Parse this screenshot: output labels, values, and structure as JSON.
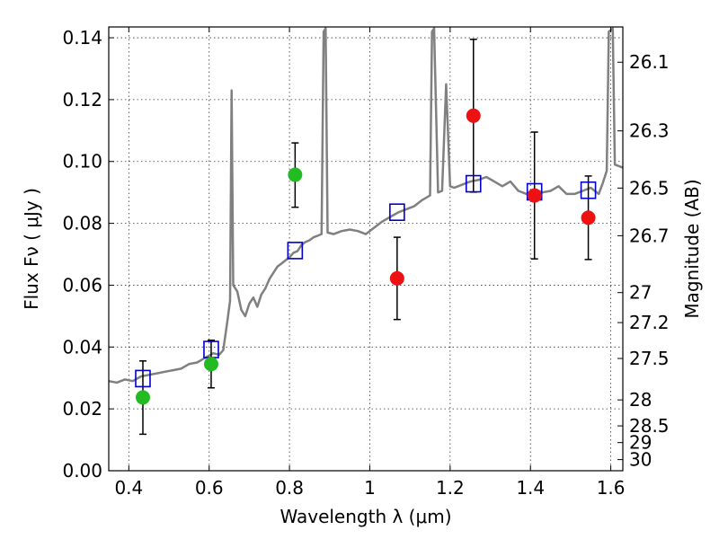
{
  "chart_data": {
    "type": "scatter",
    "title": "",
    "xlabel": "Wavelength  λ (μm)",
    "ylabel": "Flux  Fν  ( μJy )",
    "ylabel2": "Magnitude (AB)",
    "xlim": [
      0.35,
      1.63
    ],
    "ylim": [
      0.0,
      0.1435
    ],
    "grid": true,
    "x_ticks": [
      0.4,
      0.6,
      0.8,
      1.0,
      1.2,
      1.4,
      1.6
    ],
    "x_tick_labels": [
      "0.4",
      "0.6",
      "0.8",
      "1",
      "1.2",
      "1.4",
      "1.6"
    ],
    "y_ticks": [
      0.0,
      0.02,
      0.04,
      0.06,
      0.08,
      0.1,
      0.12,
      0.14
    ],
    "y_tick_labels": [
      "0.00",
      "0.02",
      "0.04",
      "0.06",
      "0.08",
      "0.10",
      "0.12",
      "0.14"
    ],
    "magnitude_ticks": [
      {
        "label": "26.1",
        "flux": 0.1321
      },
      {
        "label": "26.3",
        "flux": 0.1099
      },
      {
        "label": "26.5",
        "flux": 0.0914
      },
      {
        "label": "26.7",
        "flux": 0.076
      },
      {
        "label": "27",
        "flux": 0.0576
      },
      {
        "label": "27.2",
        "flux": 0.0479
      },
      {
        "label": "27.5",
        "flux": 0.0363
      },
      {
        "label": "28",
        "flux": 0.0229
      },
      {
        "label": "28.5",
        "flux": 0.0145
      },
      {
        "label": "29",
        "flux": 0.0091
      },
      {
        "label": "30",
        "flux": 0.0036
      }
    ],
    "colors": {
      "spectrum": "#808080",
      "model_box": "#0000cc",
      "green_point": "#22bb22",
      "red_point": "#ee1111",
      "errorbar": "#000000"
    },
    "series": [
      {
        "kind": "spectrum",
        "points": [
          [
            0.35,
            0.029
          ],
          [
            0.37,
            0.0285
          ],
          [
            0.39,
            0.0295
          ],
          [
            0.41,
            0.029
          ],
          [
            0.43,
            0.0305
          ],
          [
            0.45,
            0.031
          ],
          [
            0.47,
            0.0315
          ],
          [
            0.49,
            0.032
          ],
          [
            0.51,
            0.0325
          ],
          [
            0.53,
            0.033
          ],
          [
            0.55,
            0.0345
          ],
          [
            0.57,
            0.035
          ],
          [
            0.59,
            0.0365
          ],
          [
            0.61,
            0.038
          ],
          [
            0.625,
            0.0375
          ],
          [
            0.635,
            0.039
          ],
          [
            0.645,
            0.048
          ],
          [
            0.652,
            0.055
          ],
          [
            0.656,
            0.123
          ],
          [
            0.66,
            0.06
          ],
          [
            0.67,
            0.058
          ],
          [
            0.68,
            0.052
          ],
          [
            0.69,
            0.05
          ],
          [
            0.7,
            0.054
          ],
          [
            0.71,
            0.056
          ],
          [
            0.72,
            0.053
          ],
          [
            0.73,
            0.057
          ],
          [
            0.74,
            0.059
          ],
          [
            0.75,
            0.062
          ],
          [
            0.76,
            0.064
          ],
          [
            0.77,
            0.066
          ],
          [
            0.78,
            0.067
          ],
          [
            0.79,
            0.068
          ],
          [
            0.8,
            0.069
          ],
          [
            0.81,
            0.0705
          ],
          [
            0.82,
            0.071
          ],
          [
            0.83,
            0.073
          ],
          [
            0.84,
            0.074
          ],
          [
            0.85,
            0.0745
          ],
          [
            0.86,
            0.0755
          ],
          [
            0.87,
            0.076
          ],
          [
            0.88,
            0.0765
          ],
          [
            0.885,
            0.142
          ],
          [
            0.89,
            0.143
          ],
          [
            0.895,
            0.077
          ],
          [
            0.91,
            0.0765
          ],
          [
            0.93,
            0.0775
          ],
          [
            0.95,
            0.078
          ],
          [
            0.97,
            0.0775
          ],
          [
            0.99,
            0.0765
          ],
          [
            1.01,
            0.0785
          ],
          [
            1.03,
            0.0805
          ],
          [
            1.05,
            0.082
          ],
          [
            1.07,
            0.0835
          ],
          [
            1.09,
            0.0845
          ],
          [
            1.11,
            0.0855
          ],
          [
            1.13,
            0.0875
          ],
          [
            1.15,
            0.089
          ],
          [
            1.155,
            0.142
          ],
          [
            1.16,
            0.143
          ],
          [
            1.17,
            0.09
          ],
          [
            1.18,
            0.0905
          ],
          [
            1.19,
            0.125
          ],
          [
            1.2,
            0.092
          ],
          [
            1.21,
            0.0915
          ],
          [
            1.23,
            0.0925
          ],
          [
            1.25,
            0.0935
          ],
          [
            1.27,
            0.094
          ],
          [
            1.29,
            0.095
          ],
          [
            1.31,
            0.0935
          ],
          [
            1.33,
            0.092
          ],
          [
            1.35,
            0.0935
          ],
          [
            1.37,
            0.0905
          ],
          [
            1.39,
            0.0895
          ],
          [
            1.41,
            0.091
          ],
          [
            1.43,
            0.09
          ],
          [
            1.45,
            0.0905
          ],
          [
            1.47,
            0.092
          ],
          [
            1.49,
            0.0895
          ],
          [
            1.51,
            0.0895
          ],
          [
            1.53,
            0.0905
          ],
          [
            1.55,
            0.0915
          ],
          [
            1.57,
            0.0895
          ],
          [
            1.58,
            0.093
          ],
          [
            1.59,
            0.097
          ],
          [
            1.595,
            0.142
          ],
          [
            1.605,
            0.143
          ],
          [
            1.61,
            0.099
          ],
          [
            1.63,
            0.098
          ]
        ]
      },
      {
        "kind": "model-boxes",
        "points": [
          [
            0.435,
            0.0298
          ],
          [
            0.605,
            0.0392
          ],
          [
            0.814,
            0.0712
          ],
          [
            1.068,
            0.0836
          ],
          [
            1.258,
            0.0928
          ],
          [
            1.41,
            0.0902
          ],
          [
            1.544,
            0.0907
          ]
        ]
      },
      {
        "kind": "green-points",
        "points": [
          {
            "x": 0.435,
            "y": 0.0237,
            "lo": 0.0118,
            "hi": 0.0355
          },
          {
            "x": 0.605,
            "y": 0.0345,
            "lo": 0.0268,
            "hi": 0.0422
          },
          {
            "x": 0.814,
            "y": 0.0957,
            "lo": 0.0852,
            "hi": 0.106
          }
        ]
      },
      {
        "kind": "red-points",
        "points": [
          {
            "x": 1.068,
            "y": 0.0622,
            "lo": 0.0489,
            "hi": 0.0755
          },
          {
            "x": 1.258,
            "y": 0.1148,
            "lo": 0.0901,
            "hi": 0.1395
          },
          {
            "x": 1.41,
            "y": 0.089,
            "lo": 0.0685,
            "hi": 0.1095
          },
          {
            "x": 1.544,
            "y": 0.0818,
            "lo": 0.0683,
            "hi": 0.0953
          }
        ]
      }
    ]
  }
}
